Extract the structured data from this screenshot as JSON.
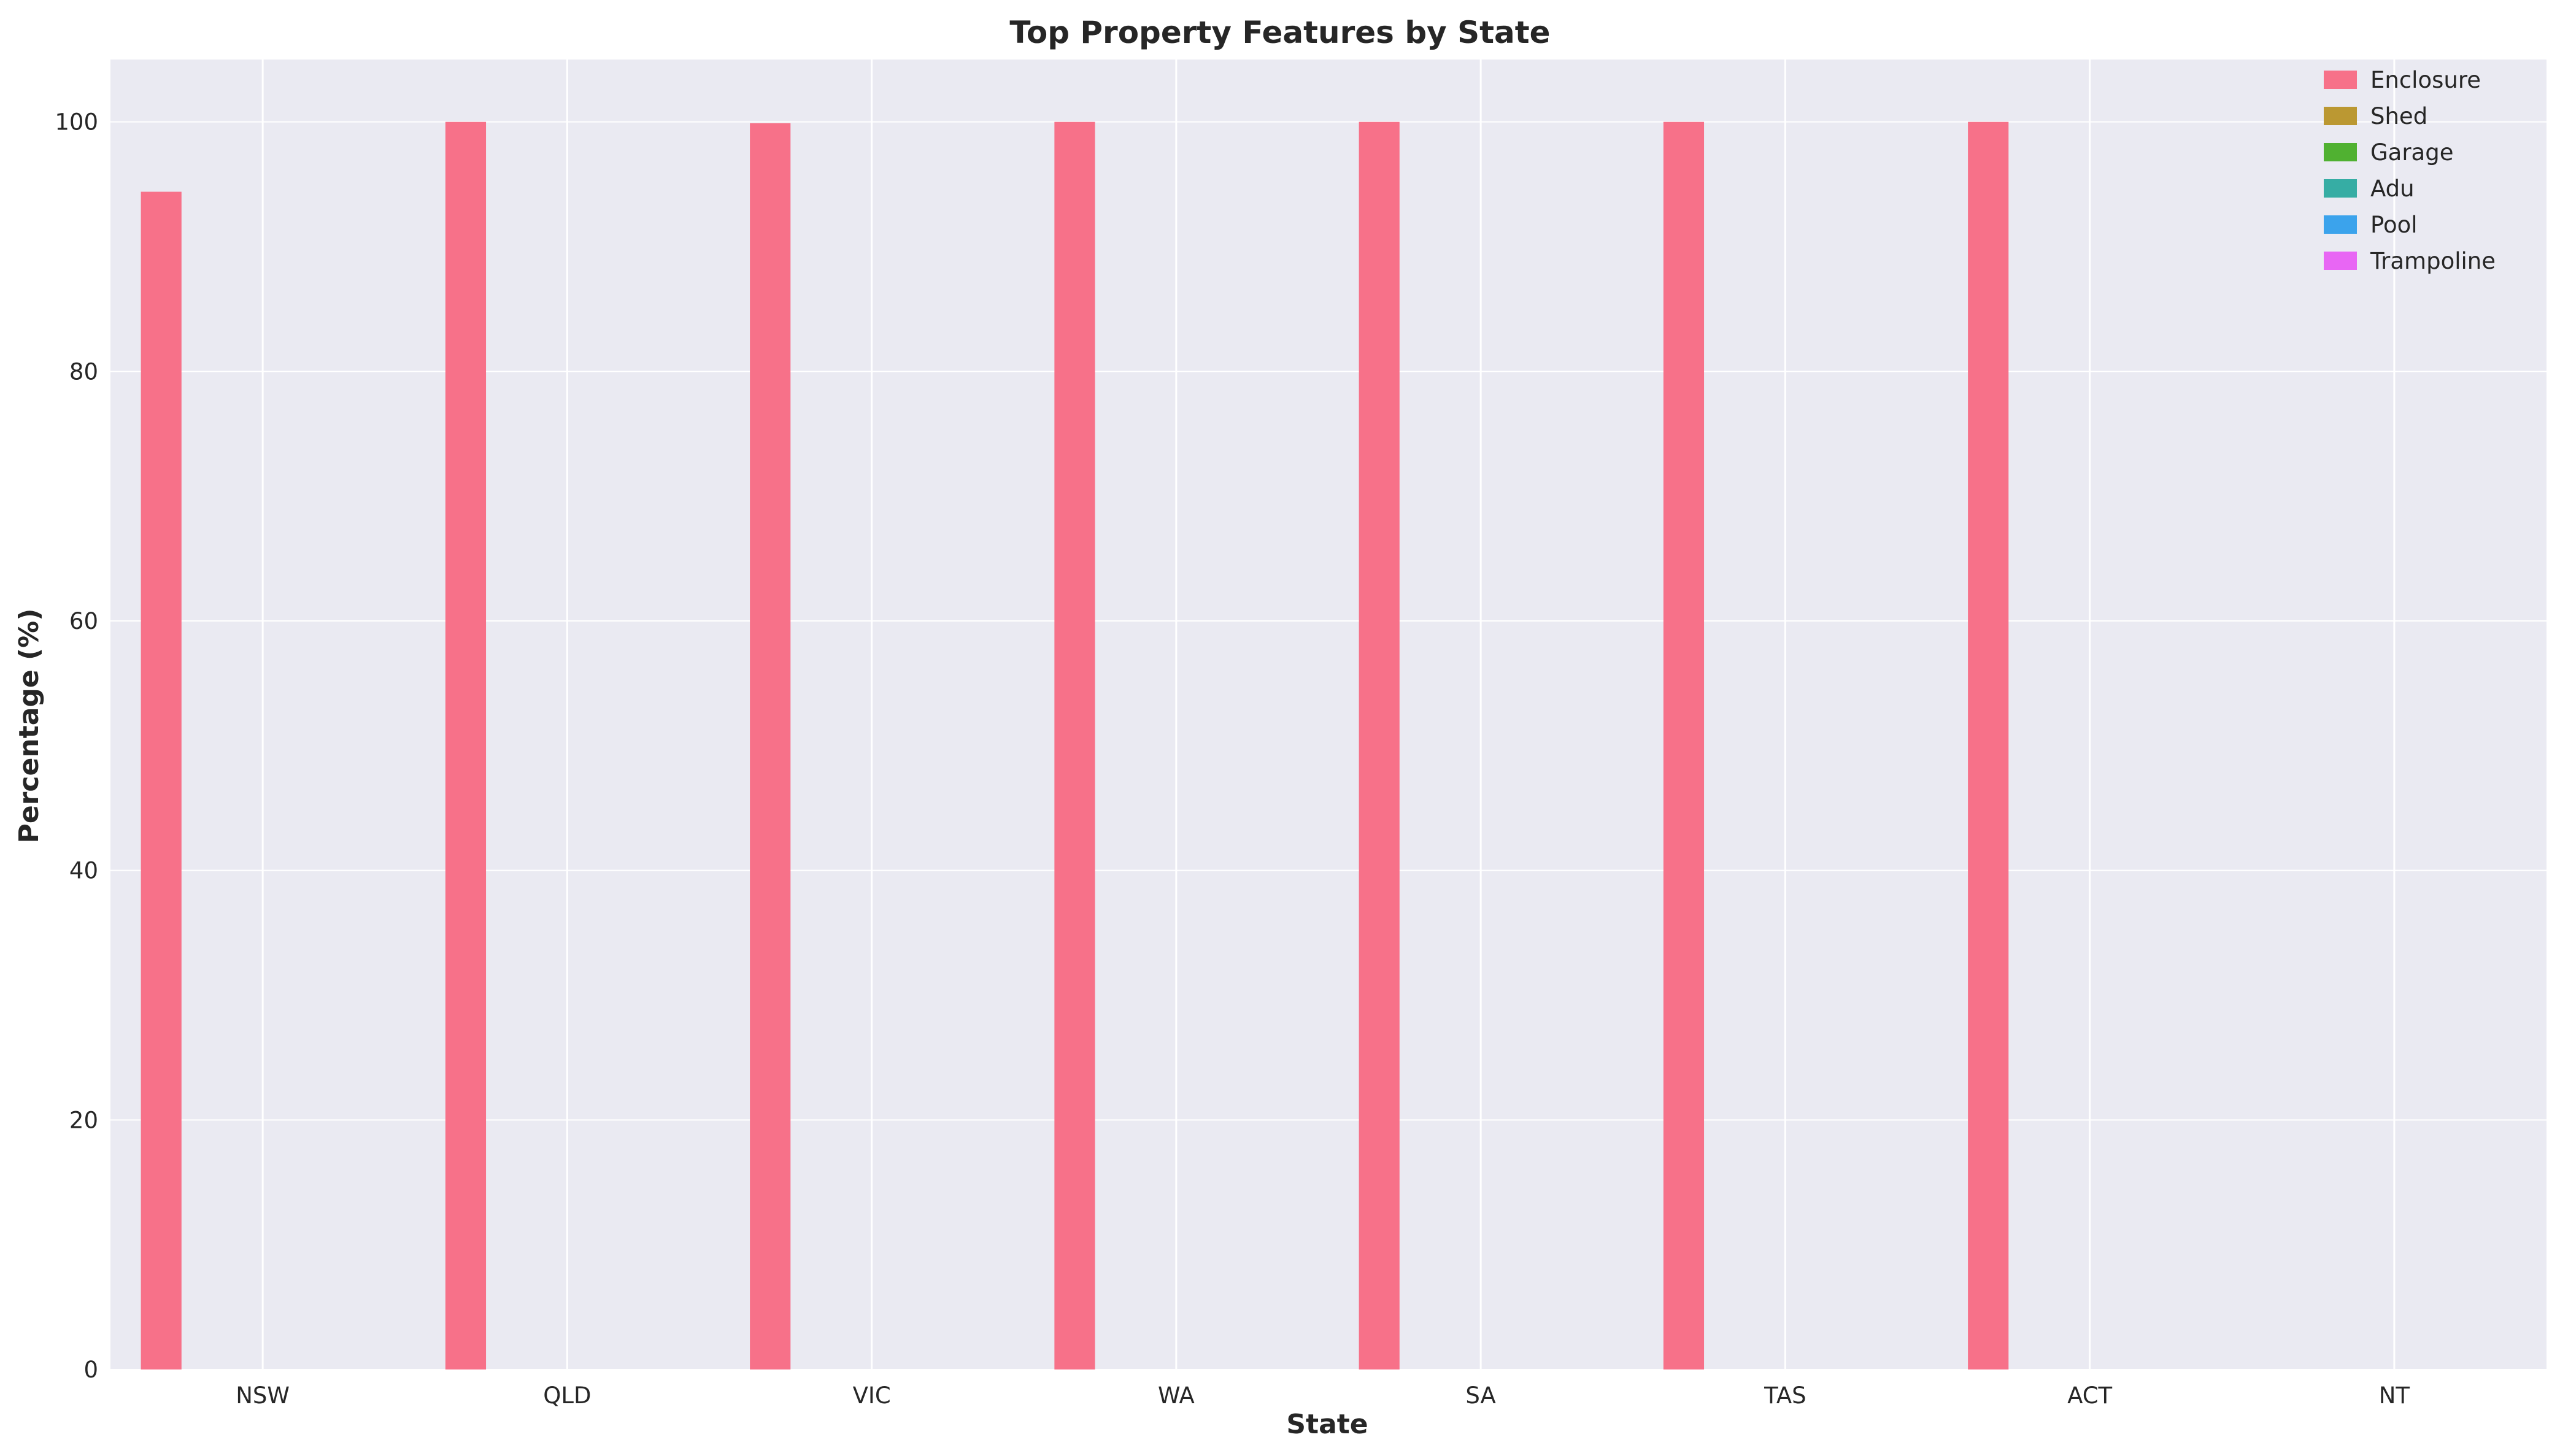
{
  "chart_data": {
    "type": "bar",
    "title": "Top Property Features by State",
    "xlabel": "State",
    "ylabel": "Percentage (%)",
    "categories": [
      "NSW",
      "QLD",
      "VIC",
      "WA",
      "SA",
      "TAS",
      "ACT",
      "NT"
    ],
    "ylim": [
      0,
      105
    ],
    "yticks": [
      0,
      20,
      40,
      60,
      80,
      100
    ],
    "grid": true,
    "legend_position": "top-right",
    "series": [
      {
        "name": "Enclosure",
        "color": "#f77189",
        "values": [
          94.4,
          100,
          99.9,
          100,
          100,
          100,
          100,
          0
        ]
      },
      {
        "name": "Shed",
        "color": "#bb9832",
        "values": [
          0,
          0,
          0,
          0,
          0,
          0,
          0,
          0
        ]
      },
      {
        "name": "Garage",
        "color": "#50b131",
        "values": [
          0,
          0,
          0,
          0,
          0,
          0,
          0,
          0
        ]
      },
      {
        "name": "Adu",
        "color": "#36ada4",
        "values": [
          0,
          0,
          0,
          0,
          0,
          0,
          0,
          0
        ]
      },
      {
        "name": "Pool",
        "color": "#3ba3ec",
        "values": [
          0,
          0,
          0,
          0,
          0,
          0,
          0,
          0
        ]
      },
      {
        "name": "Trampoline",
        "color": "#e866f4",
        "values": [
          0,
          0,
          0,
          0,
          0,
          0,
          0,
          0
        ]
      }
    ],
    "colors": {
      "plot_background": "#eaeaf2",
      "grid": "#ffffff"
    }
  }
}
